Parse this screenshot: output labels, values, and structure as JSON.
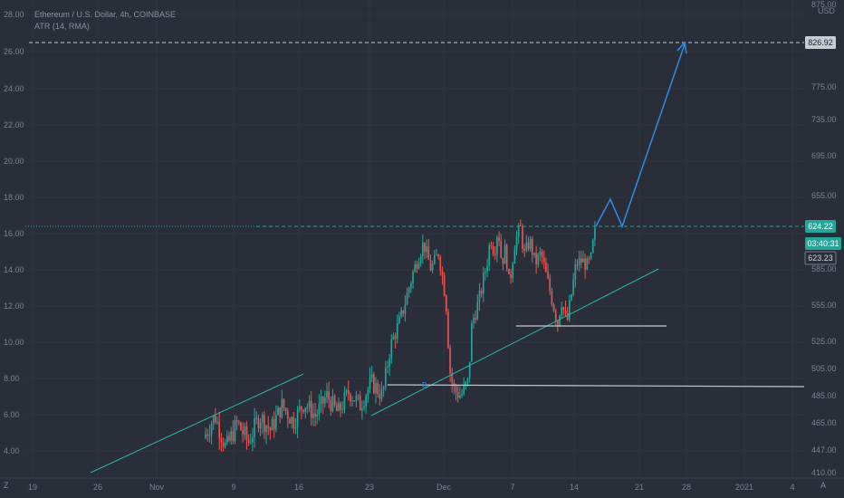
{
  "legend": {
    "symbol": "Ethereum / U.S. Dollar, 4h, COINBASE",
    "indicator": "ATR (14, RMA)"
  },
  "corner": {
    "left": "Z",
    "right": "A"
  },
  "colors": {
    "background": "#2a2e39",
    "up": "#26a69a",
    "down": "#ef5350",
    "projection": "#2f8ce6",
    "support": "#c4c7ce",
    "trendline": "#2bb5a0"
  },
  "chart_data": {
    "type": "candlestick",
    "x_axis": {
      "ticks": [
        "19",
        "26",
        "Nov",
        "9",
        "16",
        "23",
        "Dec",
        "7",
        "14",
        "21",
        "28",
        "2021",
        "4"
      ]
    },
    "left_axis": {
      "ticks": [
        "28.00",
        "26.00",
        "24.00",
        "22.00",
        "20.00",
        "18.00",
        "16.00",
        "14.00",
        "12.00",
        "10.00",
        "8.00",
        "6.00",
        "4.00"
      ]
    },
    "right_axis": {
      "unit": "USD",
      "ticks": [
        "875.00",
        "775.00",
        "735.00",
        "695.00",
        "655.00",
        "585.00",
        "555.00",
        "525.00",
        "505.00",
        "485.00",
        "465.00",
        "447.00",
        "410.00"
      ],
      "badges": [
        {
          "label": "826.92",
          "style": "target"
        },
        {
          "label": "624.22",
          "style": "last"
        },
        {
          "label": "03:40:31",
          "style": "countdown"
        },
        {
          "label": "623.23",
          "style": "prev"
        }
      ]
    },
    "annotation": "B",
    "price_path": [
      [
        0.0,
        455
      ],
      [
        0.03,
        470
      ],
      [
        0.06,
        448
      ],
      [
        0.09,
        465
      ],
      [
        0.12,
        452
      ],
      [
        0.15,
        470
      ],
      [
        0.18,
        460
      ],
      [
        0.21,
        478
      ],
      [
        0.24,
        466
      ],
      [
        0.27,
        480
      ],
      [
        0.3,
        470
      ],
      [
        0.33,
        485
      ],
      [
        0.36,
        472
      ],
      [
        0.39,
        488
      ],
      [
        0.42,
        478
      ],
      [
        0.45,
        495
      ],
      [
        0.48,
        485
      ],
      [
        0.5,
        520
      ],
      [
        0.53,
        545
      ],
      [
        0.56,
        580
      ],
      [
        0.59,
        610
      ],
      [
        0.61,
        585
      ],
      [
        0.63,
        600
      ],
      [
        0.65,
        560
      ],
      [
        0.66,
        505
      ],
      [
        0.67,
        490
      ],
      [
        0.69,
        485
      ],
      [
        0.71,
        495
      ],
      [
        0.72,
        540
      ],
      [
        0.74,
        560
      ],
      [
        0.76,
        590
      ],
      [
        0.77,
        615
      ],
      [
        0.78,
        600
      ],
      [
        0.79,
        625
      ],
      [
        0.8,
        590
      ],
      [
        0.81,
        605
      ],
      [
        0.82,
        570
      ],
      [
        0.835,
        610
      ],
      [
        0.85,
        625
      ],
      [
        0.86,
        598
      ],
      [
        0.875,
        612
      ],
      [
        0.89,
        590
      ],
      [
        0.905,
        600
      ],
      [
        0.92,
        578
      ],
      [
        0.935,
        560
      ],
      [
        0.95,
        540
      ],
      [
        0.96,
        560
      ],
      [
        0.97,
        545
      ],
      [
        0.975,
        540
      ],
      [
        0.985,
        560
      ],
      [
        0.99,
        570
      ],
      [
        1.0,
        590
      ],
      [
        1.015,
        593
      ],
      [
        1.03,
        588
      ],
      [
        1.04,
        595
      ],
      [
        1.05,
        624
      ]
    ]
  }
}
